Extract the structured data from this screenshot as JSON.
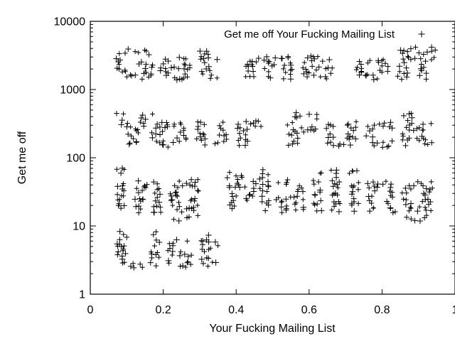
{
  "chart_data": {
    "type": "scatter",
    "title": "",
    "xlabel": "Your Fucking Mailing List",
    "ylabel": "Get me off",
    "xlim": [
      0,
      1
    ],
    "ylim": [
      1,
      10000
    ],
    "yscale": "log",
    "grid": false,
    "legend_position": "top-right",
    "marker": "+",
    "x_ticks": [
      "0",
      "0.2",
      "0.4",
      "0.6",
      "0.8",
      "1"
    ],
    "y_ticks": [
      "1",
      "10",
      "100",
      "1000",
      "10000"
    ],
    "series": [
      {
        "name": "Get me off Your Fucking Mailing List",
        "color": "#000000",
        "letter_rows": [
          {
            "text": "Get me off",
            "x_start": 0.06,
            "x_end": 0.95,
            "y_low": 1100,
            "y_high": 4300
          },
          {
            "text": "Your Fuck",
            "x_start": 0.06,
            "x_end": 0.95,
            "y_low": 110,
            "y_high": 500
          },
          {
            "text": "ing Mailing",
            "x_start": 0.06,
            "x_end": 0.95,
            "y_low": 11,
            "y_high": 75
          },
          {
            "text": "List",
            "x_start": 0.06,
            "x_end": 0.36,
            "y_low": 1.8,
            "y_high": 9
          }
        ]
      }
    ]
  }
}
